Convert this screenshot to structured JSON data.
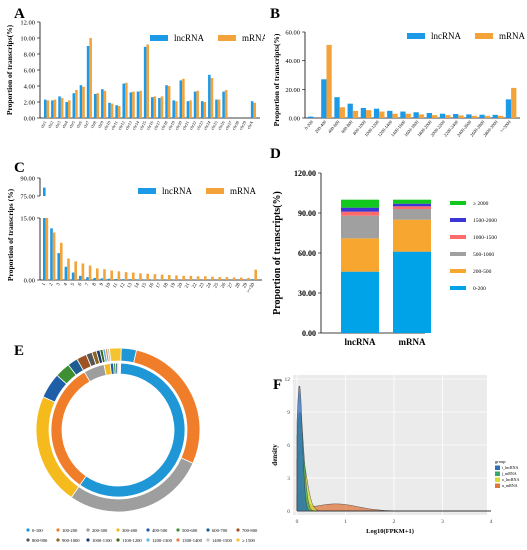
{
  "colors": {
    "lnc": "#1c9ae8",
    "m": "#f4a33a",
    "stack_lnc_total": "#00a2e8"
  },
  "chart_data": [
    {
      "panel": "A",
      "type": "bar",
      "ylabel": "Proportion of transcrips(%)",
      "ylim": [
        0,
        12
      ],
      "yticks": [
        "0.00",
        "2.00",
        "4.00",
        "6.00",
        "8.00",
        "10.00",
        "12.00"
      ],
      "categories": [
        "chr1",
        "chr2",
        "chr3",
        "chr4",
        "chr5",
        "chr6",
        "chr7",
        "chr8",
        "chr9",
        "chr10",
        "chr11",
        "chr12",
        "chr13",
        "chr14",
        "chr15",
        "chr16",
        "chr17",
        "chr18",
        "chr19",
        "chr20",
        "chr21",
        "chr22",
        "chr23",
        "chr24",
        "chr25",
        "chr26",
        "chr27",
        "chr28",
        "chr29",
        "chrX"
      ],
      "series": [
        {
          "name": "lncRNA",
          "values": [
            2.3,
            2.2,
            2.7,
            2.0,
            3.1,
            4.1,
            9.0,
            3.0,
            3.6,
            1.9,
            1.6,
            4.3,
            3.2,
            3.3,
            8.9,
            2.6,
            2.5,
            4.1,
            2.2,
            4.7,
            2.1,
            3.3,
            2.1,
            5.4,
            2.3,
            3.3,
            0.0,
            0.0,
            0.0,
            2.1
          ]
        },
        {
          "name": "mRNA",
          "values": [
            2.2,
            2.3,
            2.5,
            2.2,
            3.5,
            3.9,
            10.0,
            3.1,
            3.4,
            1.8,
            1.5,
            4.4,
            3.3,
            3.4,
            9.2,
            2.7,
            2.7,
            4.0,
            2.1,
            4.9,
            2.2,
            3.4,
            2.0,
            5.0,
            2.3,
            3.5,
            0.0,
            0.0,
            0.0,
            1.9
          ]
        }
      ]
    },
    {
      "panel": "B",
      "type": "bar",
      "ylabel": "Proportion of transcripts(%)",
      "ylim": [
        0,
        60
      ],
      "yticks": [
        "0.00",
        "20.00",
        "40.00",
        "60.00"
      ],
      "categories": [
        "0-200",
        "200-400",
        "400-600",
        "600-800",
        "800-1000",
        "1000-1200",
        "1200-1400",
        "1400-1600",
        "1600-1800",
        "1800-2000",
        "2000-2200",
        "2200-2400",
        "2400-2600",
        "2600-2800",
        "2800-3000",
        ">=3000"
      ],
      "series": [
        {
          "name": "lncRNA",
          "values": [
            1.0,
            27.0,
            14.5,
            10.0,
            7.0,
            6.5,
            5.0,
            4.5,
            4.0,
            3.5,
            3.0,
            2.8,
            2.5,
            2.3,
            2.2,
            13.0
          ]
        },
        {
          "name": "mRNA",
          "values": [
            0.0,
            51.0,
            7.5,
            5.0,
            5.5,
            4.5,
            3.0,
            3.0,
            2.5,
            2.0,
            2.0,
            1.8,
            1.5,
            1.5,
            1.5,
            21.0
          ]
        }
      ]
    },
    {
      "panel": "C",
      "type": "bar",
      "ylabel": "Proportion of transcrips (%)",
      "axis_break": true,
      "yticks": [
        "0.00",
        "15.00",
        "75.00",
        "90.00"
      ],
      "categories": [
        "1",
        "2",
        "3",
        "4",
        "5",
        "6",
        "7",
        "8",
        "9",
        "10",
        "11",
        "12",
        "13",
        "14",
        "15",
        "16",
        "17",
        "18",
        "19",
        "20",
        "21",
        "22",
        "23",
        "24",
        "25",
        "26",
        "27",
        "28",
        "29",
        ">=30"
      ],
      "series": [
        {
          "name": "lncRNA",
          "values": [
            82.0,
            12.5,
            6.5,
            3.2,
            1.8,
            1.0,
            0.7,
            0.5,
            0.4,
            0.3,
            0.25,
            0.2,
            0.2,
            0.15,
            0.15,
            0.12,
            0.1,
            0.1,
            0.08,
            0.08,
            0.06,
            0.06,
            0.05,
            0.05,
            0.04,
            0.04,
            0.03,
            0.03,
            0.03,
            0.2
          ]
        },
        {
          "name": "mRNA",
          "values": [
            15.2,
            11.5,
            9.0,
            5.2,
            4.5,
            4.0,
            3.5,
            2.8,
            2.6,
            2.3,
            2.1,
            1.9,
            1.8,
            1.6,
            1.5,
            1.4,
            1.3,
            1.2,
            1.1,
            1.0,
            1.0,
            0.9,
            0.9,
            0.8,
            0.7,
            0.7,
            0.6,
            0.6,
            0.5,
            2.5
          ]
        }
      ]
    },
    {
      "panel": "D",
      "type": "bar",
      "stacked": true,
      "ylabel": "Proportion of transcripts(%)",
      "ylim": [
        0,
        120
      ],
      "yticks": [
        "0.00",
        "30.00",
        "60.00",
        "90.00",
        "120.00"
      ],
      "categories": [
        "lncRNA",
        "mRNA"
      ],
      "series": [
        {
          "name": "0-200",
          "color": "#00a2e8",
          "values": [
            46,
            61
          ]
        },
        {
          "name": "200-500",
          "color": "#f7a62f",
          "values": [
            25,
            24
          ]
        },
        {
          "name": "500-1000",
          "color": "#a0a0a0",
          "values": [
            17,
            8
          ]
        },
        {
          "name": "1000-1500",
          "color": "#ff6b6b",
          "values": [
            3,
            2
          ]
        },
        {
          "name": "1500-2000",
          "color": "#3d35d6",
          "values": [
            3,
            2
          ]
        },
        {
          "name": "≥ 2000",
          "color": "#12c81e",
          "values": [
            6,
            3
          ]
        }
      ],
      "legend_labels": [
        "≥ 2000",
        "1500-2000",
        "1000-1500",
        "500-1000",
        "200-500",
        "0-200"
      ]
    },
    {
      "panel": "E",
      "type": "pie",
      "donut": true,
      "categories": [
        "0-100",
        "100-200",
        "200-300",
        "300-400",
        "400-500",
        "500-600",
        "600-700",
        "700-800",
        "800-900",
        "900-1000",
        "1000-1100",
        "1100-1200",
        "1200-1300",
        "1300-1400",
        "1400-1500",
        "≥ 1500"
      ],
      "colors": [
        "#1f97d6",
        "#f07d2a",
        "#9e9e9e",
        "#f5bb1c",
        "#1f5fa8",
        "#3d8f32",
        "#1d5d8f",
        "#9c5326",
        "#575757",
        "#8a6520",
        "#1d3b73",
        "#3c6b20",
        "#63b5e3",
        "#e87e4a",
        "#c0c0c0",
        "#f4c430"
      ],
      "series": [
        {
          "ring": "inner",
          "values": [
            59,
            32,
            5,
            1.5,
            0.8,
            0.5,
            0.4,
            0.3,
            0.2,
            0.1,
            0.05,
            0.05,
            0.04,
            0.03,
            0.03,
            0.0
          ]
        },
        {
          "ring": "outer",
          "values": [
            3,
            28,
            28,
            22,
            5,
            3,
            2,
            2,
            1.2,
            0.9,
            0.7,
            0.6,
            0.5,
            0.4,
            0.4,
            2.3
          ]
        }
      ]
    },
    {
      "panel": "F",
      "type": "area",
      "xlabel": "Log10(FPKM+1)",
      "ylabel": "density",
      "xlim": [
        0,
        4
      ],
      "ylim": [
        0,
        12
      ],
      "xticks": [
        "0",
        "1",
        "2",
        "3",
        "4"
      ],
      "yticks": [
        "0",
        "3",
        "6",
        "9",
        "12"
      ],
      "legend_title": "group",
      "series": [
        {
          "name": "i_lncRNA",
          "color": "#2f6fb5",
          "peak_x": 0.05,
          "peak_y": 11.5,
          "width": 0.06
        },
        {
          "name": "j_mRNA",
          "color": "#37a86a",
          "peak_x": 0.06,
          "peak_y": 9.0,
          "width": 0.08
        },
        {
          "name": "o_lncRNA",
          "color": "#d6dd2e",
          "peak_x": 0.07,
          "peak_y": 5.5,
          "width": 0.12
        },
        {
          "name": "u_mRNA",
          "color": "#e0763c",
          "peak_x": 0.08,
          "peak_y": 1.8,
          "width": 0.1,
          "second_peak_x": 0.8,
          "second_peak_y": 0.65
        }
      ]
    }
  ],
  "panel_letters": {
    "A": "A",
    "B": "B",
    "C": "C",
    "D": "D",
    "E": "E",
    "F": "F"
  }
}
